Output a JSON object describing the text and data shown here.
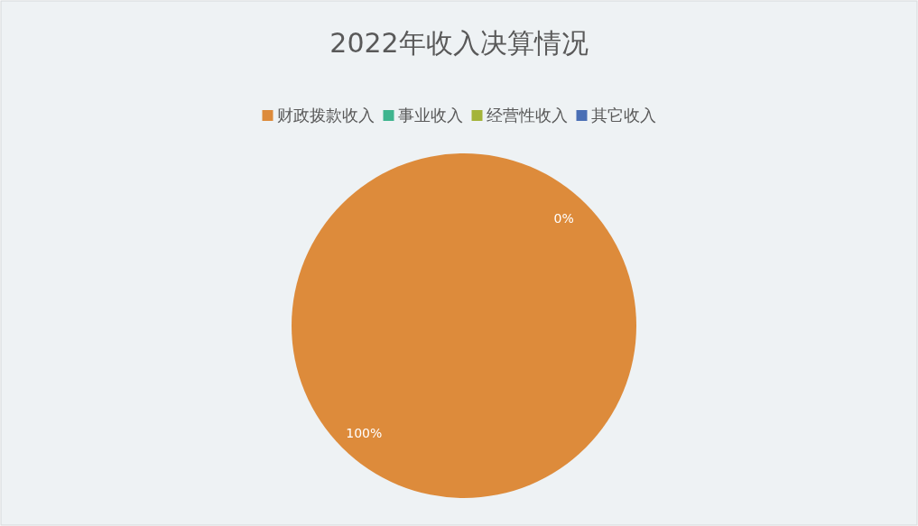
{
  "chart_data": {
    "type": "pie",
    "title": "2022年收入决算情况",
    "categories": [
      "财政拨款收入",
      "事业收入",
      "经营性收入",
      "其它收入"
    ],
    "values": [
      100,
      0,
      0,
      0
    ],
    "colors": [
      "#dd8b3b",
      "#3fb58f",
      "#a4b43a",
      "#4a6fb5"
    ],
    "value_labels": [
      "100%",
      null,
      null,
      "0%"
    ],
    "legend": "top"
  }
}
